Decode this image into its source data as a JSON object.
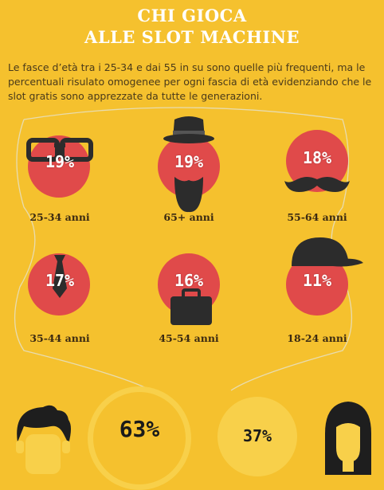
{
  "title_line1": "CHI GIOCA",
  "title_line2": "ALLE SLOT MACHINE",
  "intro": "Le fasce d’età tra i 25-34 e dai 55 in su sono quelle più frequenti, ma le percentuali risulato omogenee per ogni fascia di età evidenziando che le slot gratis sono apprezzate da tutte le generazioni.",
  "age_groups": [
    {
      "percent": "19%",
      "label": "25-34 anni",
      "icon": "glasses-icon"
    },
    {
      "percent": "19%",
      "label": "65+ anni",
      "icon": "hat-beard-icon"
    },
    {
      "percent": "18%",
      "label": "55-64 anni",
      "icon": "mustache-icon"
    },
    {
      "percent": "17%",
      "label": "35-44 anni",
      "icon": "tie-icon"
    },
    {
      "percent": "16%",
      "label": "45-54 anni",
      "icon": "briefcase-icon"
    },
    {
      "percent": "11%",
      "label": "18-24 anni",
      "icon": "cap-icon"
    }
  ],
  "gender": {
    "male_percent": "63%",
    "female_percent": "37%"
  },
  "colors": {
    "background": "#F5C12E",
    "circle": "#E04A4A",
    "icon": "#2c2c2c",
    "ring": "#F8D04A"
  }
}
